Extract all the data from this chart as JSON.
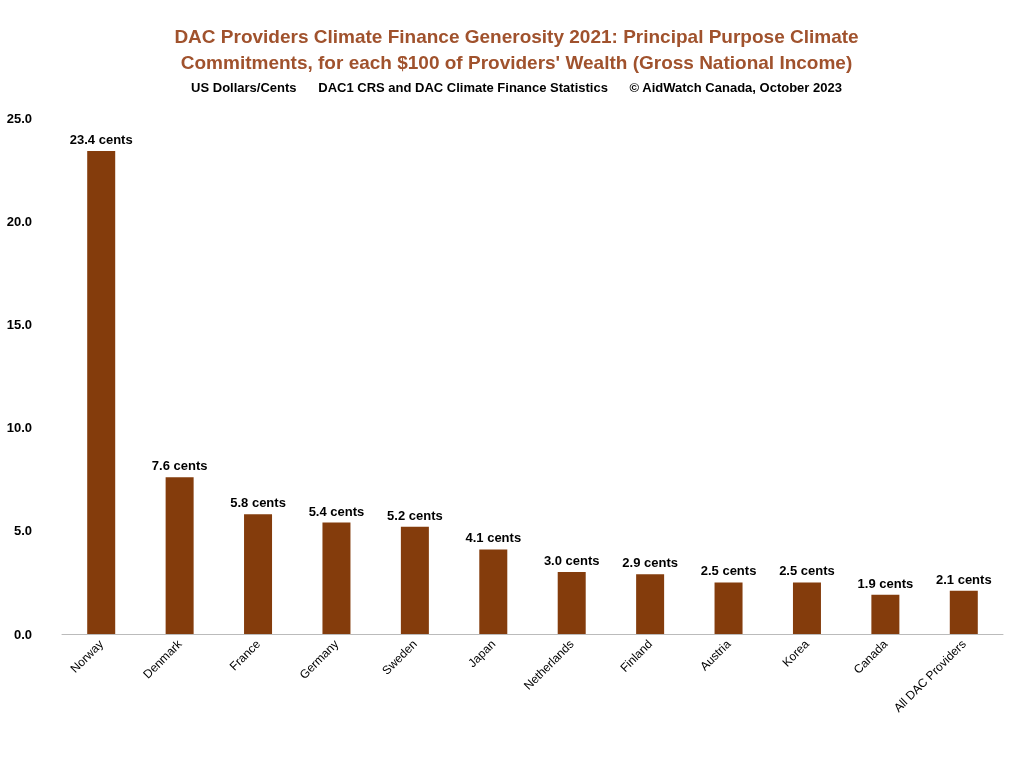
{
  "chart_data": {
    "type": "bar",
    "title": "DAC Providers Climate Finance Generosity 2021: Principal Purpose Climate\nCommitments, for each $100 of Providers' Wealth (Gross National Income)",
    "subtitle": "US Dollars/Cents      DAC1 CRS and DAC Climate Finance Statistics      © AidWatch Canada, October 2023",
    "categories": [
      "Norway",
      "Denmark",
      "France",
      "Germany",
      "Sweden",
      "Japan",
      "Netherlands",
      "Finland",
      "Austria",
      "Korea",
      "Canada",
      "All DAC Providers"
    ],
    "values": [
      23.4,
      7.6,
      5.8,
      5.4,
      5.2,
      4.1,
      3.0,
      2.9,
      2.5,
      2.5,
      1.9,
      2.1
    ],
    "value_labels": [
      "23.4 cents",
      "7.6 cents",
      "5.8 cents",
      "5.4 cents",
      "5.2 cents",
      "4.1 cents",
      "3.0 cents",
      "2.9 cents",
      "2.5 cents",
      "2.5 cents",
      "1.9 cents",
      "2.1 cents"
    ],
    "color": "#843c0c",
    "ylim": [
      0,
      25
    ],
    "yticks": [
      {
        "value": 0,
        "label": "0.0"
      },
      {
        "value": 5,
        "label": "5.0"
      },
      {
        "value": 10,
        "label": "10.0"
      },
      {
        "value": 15,
        "label": "15.0"
      },
      {
        "value": 20,
        "label": "20.0"
      },
      {
        "value": 25,
        "label": "25.0"
      }
    ],
    "grid": false
  }
}
